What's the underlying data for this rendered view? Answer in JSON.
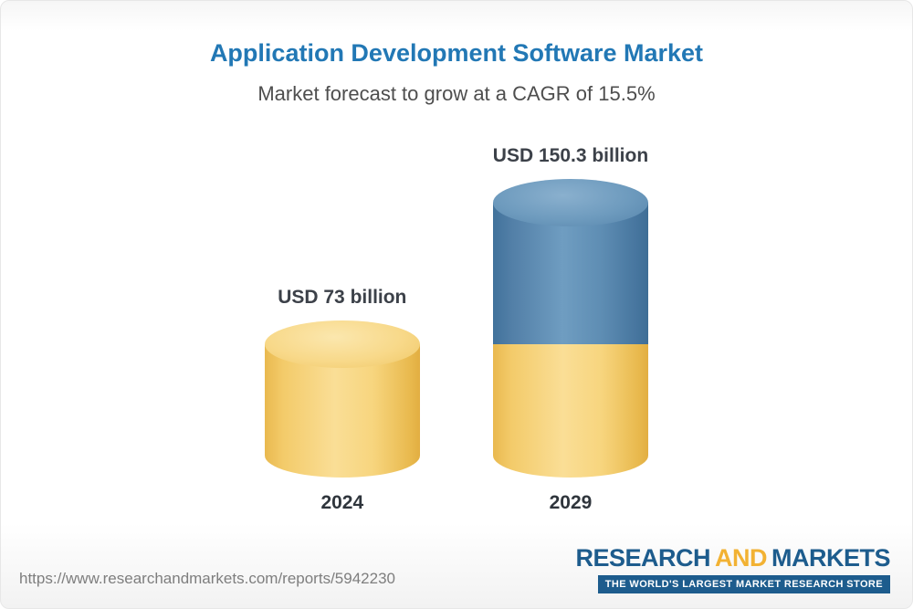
{
  "header": {
    "title": "Application Development Software Market",
    "subtitle": "Market forecast to grow at a CAGR of 15.5%"
  },
  "chart_data": {
    "type": "bar",
    "title": "Application Development Software Market",
    "subtitle": "Market forecast to grow at a CAGR of 15.5%",
    "unit": "USD billion",
    "categories": [
      "2024",
      "2029"
    ],
    "values": [
      73,
      150.3
    ],
    "cagr_percent": 15.5,
    "bars": [
      {
        "year": "2024",
        "label": "USD 73 billion",
        "value": 73,
        "segments": [
          {
            "name": "base",
            "value": 73,
            "color": "#F6CE6E"
          }
        ]
      },
      {
        "year": "2029",
        "label": "USD 150.3 billion",
        "value": 150.3,
        "segments": [
          {
            "name": "base",
            "value": 73,
            "color": "#F6CE6E"
          },
          {
            "name": "growth",
            "value": 77.3,
            "color": "#4E7FA6"
          }
        ]
      }
    ],
    "colors": {
      "base": "#F6CE6E",
      "growth": "#4E7FA6",
      "title": "#2278B5"
    },
    "legend": "off",
    "grid": "off"
  },
  "footer": {
    "url": "https://www.researchandmarkets.com/reports/5942230",
    "logo": {
      "part1": "RESEARCH",
      "part2": "AND",
      "part3": "MARKETS",
      "tagline": "THE WORLD'S LARGEST MARKET RESEARCH STORE"
    }
  }
}
